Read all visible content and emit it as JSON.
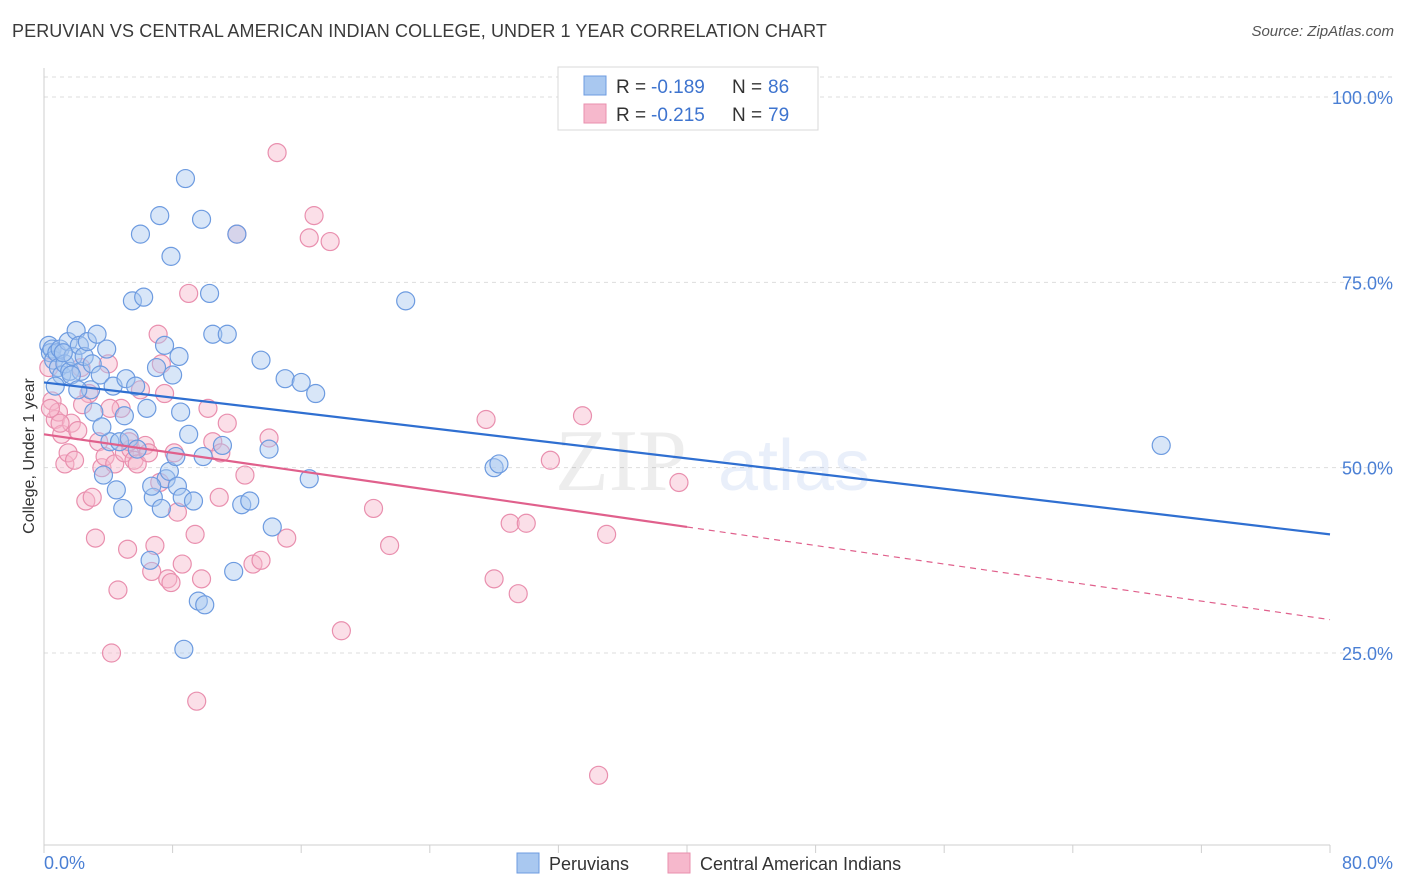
{
  "title": "PERUVIAN VS CENTRAL AMERICAN INDIAN COLLEGE, UNDER 1 YEAR CORRELATION CHART",
  "source": "Source: ZipAtlas.com",
  "watermark": {
    "zip": "ZIP",
    "atlas": "atlas"
  },
  "colors": {
    "blue_fill": "#a9c8f0",
    "blue_stroke": "#6d9be0",
    "blue_line": "#2f6fd1",
    "pink_fill": "#f6b8cc",
    "pink_stroke": "#e98fae",
    "pink_line": "#e0608c",
    "grid": "#dddddd",
    "axis_label": "#4a7fd4"
  },
  "legend": {
    "items": [
      {
        "r_label": "R = ",
        "r_value": "-0.189",
        "n_label": "N = ",
        "n_value": "86",
        "color": "blue"
      },
      {
        "r_label": "R = ",
        "r_value": "-0.215",
        "n_label": "N = ",
        "n_value": "79",
        "color": "pink"
      }
    ]
  },
  "chart_data": {
    "type": "scatter",
    "title": "PERUVIAN VS CENTRAL AMERICAN INDIAN COLLEGE, UNDER 1 YEAR CORRELATION CHART",
    "xlabel": "",
    "ylabel": "College, Under 1 year",
    "xlim": [
      0,
      80
    ],
    "ylim": [
      0,
      105
    ],
    "x_tick_labels": [
      "0.0%",
      "80.0%"
    ],
    "y_ticks": [
      25,
      50,
      75,
      100
    ],
    "y_tick_labels": [
      "25.0%",
      "50.0%",
      "75.0%",
      "100.0%"
    ],
    "grid": true,
    "legend_position": "top-center",
    "series": [
      {
        "name": "Peruvians",
        "color": "#6d9be0",
        "R": -0.189,
        "N": 86,
        "trend": {
          "x": [
            0,
            80
          ],
          "y": [
            61.5,
            41
          ],
          "style": "solid"
        },
        "points": [
          [
            0.3,
            66.5
          ],
          [
            0.4,
            65.5
          ],
          [
            0.5,
            66
          ],
          [
            0.6,
            64.5
          ],
          [
            0.8,
            65.5
          ],
          [
            0.9,
            63.5
          ],
          [
            1.0,
            66
          ],
          [
            1.1,
            62.5
          ],
          [
            1.3,
            64
          ],
          [
            1.5,
            67
          ],
          [
            1.6,
            63
          ],
          [
            1.8,
            65
          ],
          [
            2.0,
            68.5
          ],
          [
            2.2,
            66.5
          ],
          [
            2.3,
            63
          ],
          [
            2.5,
            65
          ],
          [
            2.7,
            67
          ],
          [
            2.9,
            60.5
          ],
          [
            3.0,
            64
          ],
          [
            3.1,
            57.5
          ],
          [
            3.3,
            68
          ],
          [
            3.5,
            62.5
          ],
          [
            3.7,
            49
          ],
          [
            3.9,
            66
          ],
          [
            4.1,
            53.5
          ],
          [
            4.3,
            61
          ],
          [
            4.5,
            47
          ],
          [
            4.7,
            53.5
          ],
          [
            4.9,
            44.5
          ],
          [
            5.1,
            62
          ],
          [
            5.3,
            54
          ],
          [
            5.5,
            72.5
          ],
          [
            5.7,
            61
          ],
          [
            5.8,
            52.5
          ],
          [
            6.0,
            81.5
          ],
          [
            6.2,
            73
          ],
          [
            6.4,
            58
          ],
          [
            6.6,
            37.5
          ],
          [
            6.8,
            46
          ],
          [
            7.0,
            63.5
          ],
          [
            7.2,
            84
          ],
          [
            7.3,
            44.5
          ],
          [
            7.5,
            66.5
          ],
          [
            7.6,
            48.5
          ],
          [
            7.8,
            49.5
          ],
          [
            7.9,
            78.5
          ],
          [
            8.0,
            62.5
          ],
          [
            8.2,
            51.5
          ],
          [
            8.3,
            47.5
          ],
          [
            8.4,
            65
          ],
          [
            8.5,
            57.5
          ],
          [
            8.6,
            46
          ],
          [
            8.7,
            25.5
          ],
          [
            8.8,
            89
          ],
          [
            9.0,
            54.5
          ],
          [
            9.3,
            45.5
          ],
          [
            9.6,
            32
          ],
          [
            9.8,
            83.5
          ],
          [
            9.9,
            51.5
          ],
          [
            10.0,
            31.5
          ],
          [
            10.3,
            73.5
          ],
          [
            10.5,
            68
          ],
          [
            11.1,
            53
          ],
          [
            11.4,
            68
          ],
          [
            11.8,
            36
          ],
          [
            12.0,
            81.5
          ],
          [
            12.3,
            45
          ],
          [
            12.8,
            45.5
          ],
          [
            13.5,
            64.5
          ],
          [
            14.0,
            52.5
          ],
          [
            14.2,
            42
          ],
          [
            15.0,
            62
          ],
          [
            16.0,
            61.5
          ],
          [
            16.5,
            48.5
          ],
          [
            16.9,
            60
          ],
          [
            22.5,
            72.5
          ],
          [
            28.0,
            50
          ],
          [
            28.3,
            50.5
          ],
          [
            69.5,
            53
          ],
          [
            1.2,
            65.5
          ],
          [
            1.7,
            62.5
          ],
          [
            2.1,
            60.5
          ],
          [
            0.7,
            61
          ],
          [
            5.0,
            57
          ],
          [
            6.7,
            47.5
          ],
          [
            3.6,
            55.5
          ]
        ]
      },
      {
        "name": "Central American Indians",
        "color": "#e98fae",
        "R": -0.215,
        "N": 79,
        "trend": {
          "x": [
            0,
            40,
            80
          ],
          "y": [
            54.5,
            42,
            29.5
          ],
          "style": "solid-then-dashed"
        },
        "points": [
          [
            0.3,
            63.5
          ],
          [
            0.5,
            59
          ],
          [
            0.7,
            56.5
          ],
          [
            0.9,
            57.5
          ],
          [
            1.1,
            54.5
          ],
          [
            1.3,
            50.5
          ],
          [
            1.5,
            52
          ],
          [
            1.7,
            56
          ],
          [
            1.9,
            51
          ],
          [
            2.1,
            55
          ],
          [
            2.3,
            63.5
          ],
          [
            2.6,
            45.5
          ],
          [
            2.8,
            60
          ],
          [
            3.0,
            46
          ],
          [
            3.2,
            40.5
          ],
          [
            3.4,
            53.5
          ],
          [
            3.6,
            50
          ],
          [
            3.8,
            51.5
          ],
          [
            4.0,
            64
          ],
          [
            4.2,
            25
          ],
          [
            4.4,
            50.5
          ],
          [
            4.6,
            33.5
          ],
          [
            4.8,
            58
          ],
          [
            5.0,
            52
          ],
          [
            5.2,
            39
          ],
          [
            5.4,
            52.5
          ],
          [
            5.6,
            51
          ],
          [
            5.8,
            50.5
          ],
          [
            6.0,
            60.5
          ],
          [
            6.3,
            53
          ],
          [
            6.5,
            52
          ],
          [
            6.7,
            36
          ],
          [
            6.9,
            39.5
          ],
          [
            7.1,
            68
          ],
          [
            7.3,
            64
          ],
          [
            7.5,
            60
          ],
          [
            7.7,
            35
          ],
          [
            7.9,
            34.5
          ],
          [
            8.1,
            52
          ],
          [
            8.3,
            44
          ],
          [
            8.6,
            37
          ],
          [
            9.0,
            73.5
          ],
          [
            9.5,
            18.5
          ],
          [
            9.8,
            35
          ],
          [
            10.2,
            58
          ],
          [
            10.5,
            53.5
          ],
          [
            10.9,
            46
          ],
          [
            11.4,
            56
          ],
          [
            12.0,
            81.5
          ],
          [
            12.5,
            49
          ],
          [
            13.0,
            37
          ],
          [
            13.5,
            37.5
          ],
          [
            14.0,
            54
          ],
          [
            14.5,
            92.5
          ],
          [
            15.1,
            40.5
          ],
          [
            16.5,
            81
          ],
          [
            16.8,
            84
          ],
          [
            17.8,
            80.5
          ],
          [
            18.5,
            28
          ],
          [
            20.5,
            44.5
          ],
          [
            21.5,
            39.5
          ],
          [
            27.5,
            56.5
          ],
          [
            28.0,
            35
          ],
          [
            29.0,
            42.5
          ],
          [
            29.5,
            33
          ],
          [
            30.0,
            42.5
          ],
          [
            31.5,
            51
          ],
          [
            33.5,
            57
          ],
          [
            35.0,
            41
          ],
          [
            39.5,
            48
          ],
          [
            34.5,
            8.5
          ],
          [
            0.4,
            58
          ],
          [
            1.0,
            56
          ],
          [
            2.4,
            58.5
          ],
          [
            4.1,
            58
          ],
          [
            5.3,
            53.5
          ],
          [
            7.2,
            48
          ],
          [
            9.4,
            41
          ],
          [
            11.0,
            52
          ]
        ]
      }
    ]
  },
  "bottom_legend": [
    "Peruvians",
    "Central American Indians"
  ]
}
